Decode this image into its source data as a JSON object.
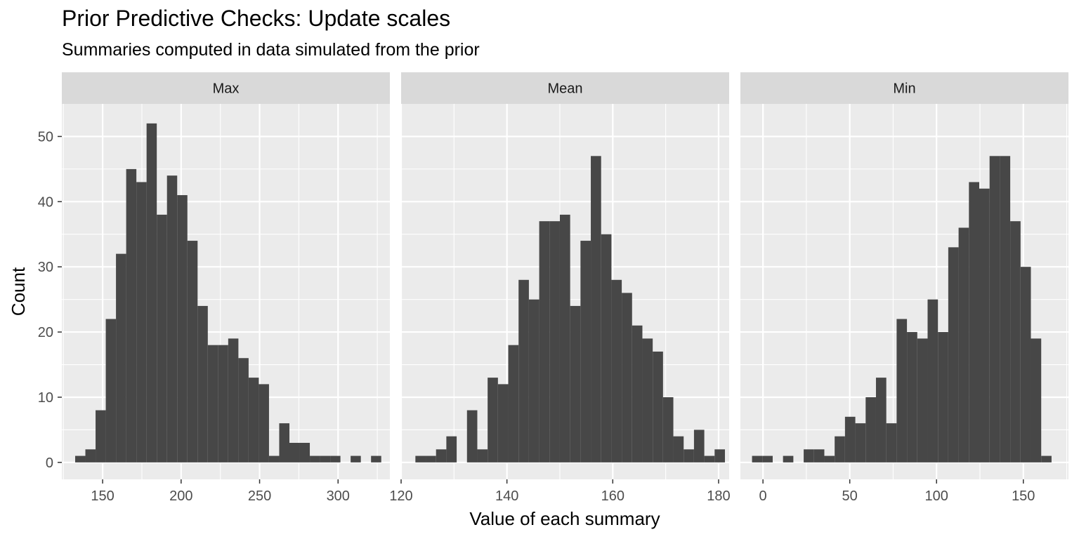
{
  "chart_data": {
    "type": "bar",
    "title": "Prior Predictive Checks: Update scales",
    "subtitle": "Summaries computed in data simulated from the prior",
    "xlabel": "Value of each summary",
    "ylabel": "Count",
    "ylim": [
      -2.6,
      55
    ],
    "yticks": [
      0,
      10,
      20,
      30,
      40,
      50
    ],
    "grid": true,
    "colors": {
      "bar": "#474747",
      "panel": "#ebebeb",
      "strip": "#d9d9d9",
      "grid": "#ffffff"
    },
    "panels": [
      {
        "label": "Max",
        "xlim": [
          124,
          333
        ],
        "xticks": [
          150,
          200,
          250,
          300
        ],
        "bin_start": 132.5,
        "bin_width": 6.5,
        "counts": [
          1,
          2,
          8,
          22,
          32,
          45,
          43,
          52,
          38,
          44,
          41,
          34,
          24,
          18,
          18,
          19,
          16,
          13,
          12,
          1,
          6,
          3,
          3,
          1,
          1,
          1,
          0,
          1,
          0,
          1
        ]
      },
      {
        "label": "Mean",
        "xlim": [
          120,
          182
        ],
        "xticks": [
          120,
          140,
          160,
          180
        ],
        "bin_start": 122.7,
        "bin_width": 1.95,
        "counts": [
          1,
          1,
          2,
          4,
          0,
          8,
          2,
          13,
          12,
          18,
          28,
          25,
          37,
          37,
          38,
          24,
          34,
          47,
          35,
          28,
          26,
          21,
          19,
          17,
          10,
          4,
          2,
          5,
          1,
          2
        ]
      },
      {
        "label": "Min",
        "xlim": [
          -13,
          176
        ],
        "xticks": [
          0,
          50,
          100,
          150
        ],
        "bin_start": -6.3,
        "bin_width": 5.95,
        "counts": [
          1,
          1,
          0,
          1,
          0,
          2,
          2,
          1,
          4,
          7,
          6,
          10,
          13,
          6,
          22,
          20,
          19,
          25,
          20,
          33,
          36,
          43,
          42,
          47,
          47,
          37,
          30,
          19,
          1,
          0
        ]
      }
    ]
  }
}
